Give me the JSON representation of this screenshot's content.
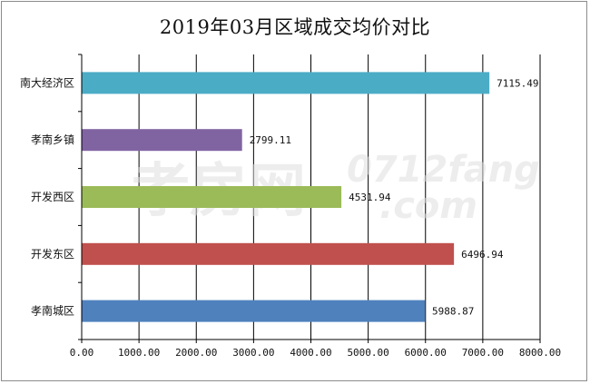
{
  "chart_data": {
    "type": "bar",
    "orientation": "horizontal",
    "title": "2019年03月区域成交均价对比",
    "categories": [
      "南大经济区",
      "孝南乡镇",
      "开发西区",
      "开发东区",
      "孝南城区"
    ],
    "values": [
      7115.49,
      2799.11,
      4531.94,
      6496.94,
      5988.87
    ],
    "value_labels": [
      "7115.49",
      "2799.11",
      "4531.94",
      "6496.94",
      "5988.87"
    ],
    "colors": [
      "#4bacc6",
      "#8064a2",
      "#9bbb59",
      "#c0504d",
      "#4f81bd"
    ],
    "xlim": [
      0,
      8000
    ],
    "xticks": [
      0,
      1000,
      2000,
      3000,
      4000,
      5000,
      6000,
      7000,
      8000
    ],
    "xtick_labels": [
      "0.00",
      "1000.00",
      "2000.00",
      "3000.00",
      "4000.00",
      "5000.00",
      "6000.00",
      "7000.00",
      "8000.00"
    ],
    "grid": "vertical",
    "legend": "none"
  },
  "watermark": {
    "main": "孝房网",
    "sub": "0712fang",
    "domain": ".com"
  }
}
